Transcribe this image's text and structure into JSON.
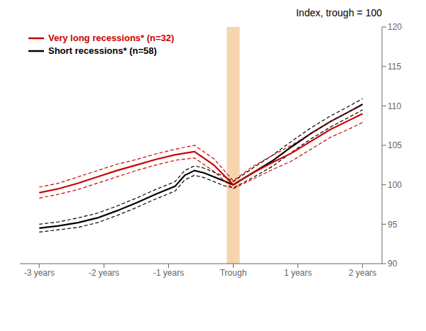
{
  "chart_data": {
    "type": "line",
    "title": "Index, trough = 100",
    "xlim": [
      -3.3,
      2.3
    ],
    "xticks": [
      {
        "value": -3,
        "label": "-3 years"
      },
      {
        "value": -2,
        "label": "-2 years"
      },
      {
        "value": -1,
        "label": "-1 years"
      },
      {
        "value": 0,
        "label": "Trough"
      },
      {
        "value": 1,
        "label": "1 years"
      },
      {
        "value": 2,
        "label": "2 years"
      }
    ],
    "ylim": [
      90,
      120
    ],
    "yticks": [
      90,
      95,
      100,
      105,
      110,
      115,
      120
    ],
    "legend": "upper left",
    "shade": {
      "x": [
        -0.1,
        0.1
      ],
      "color": "#f5d5b0"
    },
    "series": [
      {
        "name": "Very long recessions* (n=32)",
        "color": "#cc0000",
        "x": [
          -3.0,
          -2.7,
          -2.4,
          -2.1,
          -1.8,
          -1.5,
          -1.2,
          -0.9,
          -0.6,
          -0.3,
          0.0,
          0.3,
          0.6,
          0.9,
          1.2,
          1.5,
          1.8,
          2.0
        ],
        "values": [
          99.0,
          99.5,
          100.2,
          101.0,
          101.8,
          102.5,
          103.2,
          103.8,
          104.2,
          102.5,
          100.0,
          101.5,
          102.8,
          104.0,
          105.5,
          107.0,
          108.2,
          109.0
        ],
        "upper": [
          99.7,
          100.2,
          101.0,
          101.8,
          102.6,
          103.2,
          103.9,
          104.5,
          105.0,
          103.3,
          100.5,
          102.3,
          103.7,
          105.0,
          106.5,
          108.0,
          109.3,
          110.1
        ],
        "lower": [
          98.3,
          98.8,
          99.4,
          100.2,
          101.0,
          101.8,
          102.5,
          103.1,
          103.4,
          101.7,
          99.5,
          100.7,
          101.9,
          103.0,
          104.5,
          106.0,
          107.1,
          107.9
        ]
      },
      {
        "name": "Short recessions* (n=58)",
        "color": "#000000",
        "x": [
          -3.0,
          -2.7,
          -2.4,
          -2.1,
          -1.8,
          -1.5,
          -1.2,
          -0.9,
          -0.75,
          -0.6,
          -0.45,
          -0.3,
          -0.15,
          0.0,
          0.3,
          0.6,
          0.9,
          1.2,
          1.5,
          1.8,
          2.0
        ],
        "values": [
          94.5,
          94.8,
          95.2,
          95.8,
          96.7,
          97.7,
          98.8,
          99.8,
          101.2,
          101.8,
          101.5,
          101.0,
          100.5,
          100.0,
          101.5,
          103.0,
          104.8,
          106.5,
          108.0,
          109.3,
          110.2
        ],
        "upper": [
          95.0,
          95.3,
          95.8,
          96.4,
          97.3,
          98.3,
          99.4,
          100.4,
          101.8,
          102.4,
          102.1,
          101.6,
          101.1,
          100.4,
          102.1,
          103.7,
          105.5,
          107.2,
          108.7,
          110.0,
          110.9
        ],
        "lower": [
          94.0,
          94.3,
          94.6,
          95.2,
          96.1,
          97.1,
          98.2,
          99.2,
          100.6,
          101.2,
          100.9,
          100.4,
          99.9,
          99.6,
          100.9,
          102.3,
          104.1,
          105.8,
          107.3,
          108.6,
          109.5
        ]
      }
    ]
  }
}
